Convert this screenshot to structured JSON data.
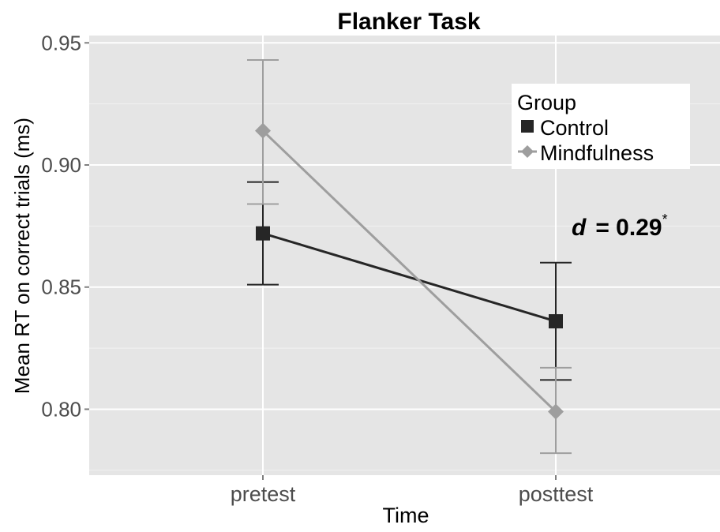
{
  "chart_data": {
    "type": "line",
    "title": "Flanker Task",
    "xlabel": "Time",
    "ylabel": "Mean RT on correct trials (ms)",
    "categories": [
      "pretest",
      "posttest"
    ],
    "ylim": [
      0.773,
      0.953
    ],
    "yticks": [
      0.8,
      0.85,
      0.9,
      0.95
    ],
    "ytick_labels": [
      "0.80",
      "0.85",
      "0.90",
      "0.95"
    ],
    "grid": true,
    "legend": {
      "title": "Group",
      "position": "top-right"
    },
    "series": [
      {
        "name": "Control",
        "marker": "square",
        "color": "#262626",
        "values": [
          0.872,
          0.836
        ],
        "error_lower": [
          0.851,
          0.812
        ],
        "error_upper": [
          0.893,
          0.86
        ]
      },
      {
        "name": "Mindfulness",
        "marker": "diamond",
        "color": "#9e9e9e",
        "values": [
          0.914,
          0.799
        ],
        "error_lower": [
          0.884,
          0.782
        ],
        "error_upper": [
          0.943,
          0.817
        ]
      }
    ],
    "annotation": {
      "symbol": "d",
      "text": "= 0.29",
      "superscript": "*"
    }
  }
}
